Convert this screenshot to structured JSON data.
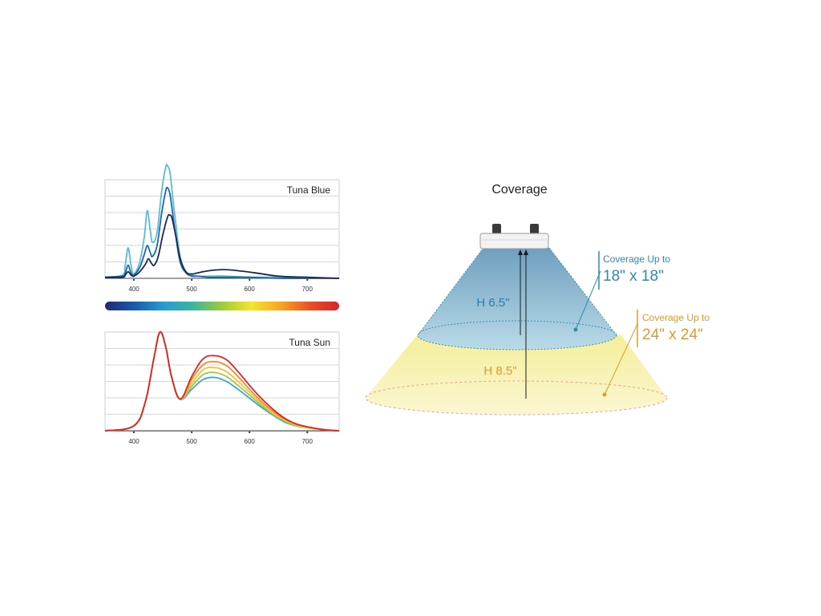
{
  "charts": {
    "blue": {
      "title": "Tuna Blue",
      "xticks": [
        "400",
        "500",
        "600",
        "700"
      ]
    },
    "sun": {
      "title": "Tuna Sun",
      "xticks": [
        "400",
        "500",
        "600",
        "700"
      ]
    }
  },
  "spectrum_bar": {
    "colors": [
      "#1f2a6e",
      "#1a5aa8",
      "#2a9ad0",
      "#3fb3a0",
      "#9ecb3c",
      "#f2e534",
      "#f5a623",
      "#e5512a",
      "#d3262b"
    ]
  },
  "coverage": {
    "title": "Coverage",
    "height_small": "H 6.5\"",
    "height_large": "H 8.5\"",
    "small": {
      "line1": "Coverage Up to",
      "line2": "18\" x 18\"",
      "color": "#2b8bb0"
    },
    "large": {
      "line1": "Coverage Up to",
      "line2": "24\" x 24\"",
      "color": "#e09a2c"
    }
  },
  "chart_data": [
    {
      "type": "line",
      "title": "Tuna Blue",
      "xlabel": "",
      "ylabel": "",
      "xlim": [
        350,
        755
      ],
      "ylim": [
        0,
        1
      ],
      "x_ticks": [
        400,
        500,
        600,
        700
      ],
      "grid": true,
      "series": [
        {
          "color": "#5bbcd6",
          "x": [
            350,
            380,
            385,
            390,
            395,
            400,
            410,
            418,
            423,
            428,
            432,
            440,
            448,
            455,
            458,
            462,
            466,
            472,
            480,
            490,
            500,
            510,
            530,
            560,
            600,
            650,
            700,
            755
          ],
          "y": [
            0.01,
            0.03,
            0.12,
            0.28,
            0.12,
            0.04,
            0.15,
            0.38,
            0.62,
            0.45,
            0.33,
            0.42,
            0.8,
            1.02,
            1.03,
            0.98,
            0.8,
            0.52,
            0.2,
            0.05,
            0.03,
            0.02,
            0.02,
            0.02,
            0.01,
            0.01,
            0.0,
            0.0
          ]
        },
        {
          "color": "#1a6aa8",
          "x": [
            350,
            380,
            385,
            390,
            395,
            400,
            410,
            418,
            423,
            428,
            432,
            440,
            448,
            455,
            458,
            462,
            466,
            472,
            480,
            490,
            500,
            510,
            530,
            560,
            600,
            650,
            700,
            755
          ],
          "y": [
            0.01,
            0.02,
            0.05,
            0.12,
            0.05,
            0.03,
            0.1,
            0.22,
            0.3,
            0.24,
            0.2,
            0.3,
            0.6,
            0.8,
            0.83,
            0.78,
            0.64,
            0.4,
            0.15,
            0.05,
            0.02,
            0.02,
            0.01,
            0.01,
            0.01,
            0.0,
            0.0,
            0.0
          ]
        },
        {
          "color": "#1c2752",
          "x": [
            350,
            380,
            385,
            390,
            395,
            400,
            410,
            420,
            425,
            430,
            435,
            442,
            450,
            458,
            462,
            466,
            472,
            480,
            490,
            500,
            510,
            530,
            555,
            580,
            610,
            650,
            700,
            755
          ],
          "y": [
            0.01,
            0.01,
            0.03,
            0.06,
            0.03,
            0.02,
            0.06,
            0.13,
            0.18,
            0.14,
            0.12,
            0.2,
            0.4,
            0.56,
            0.58,
            0.55,
            0.4,
            0.18,
            0.06,
            0.04,
            0.05,
            0.07,
            0.08,
            0.07,
            0.05,
            0.02,
            0.01,
            0.0
          ]
        }
      ]
    },
    {
      "type": "line",
      "title": "Tuna Sun",
      "xlabel": "",
      "ylabel": "",
      "xlim": [
        350,
        755
      ],
      "ylim": [
        0,
        1
      ],
      "x_ticks": [
        400,
        500,
        600,
        700
      ],
      "grid": true,
      "series": [
        {
          "color": "#3aa3d2",
          "x": [
            350,
            400,
            420,
            435,
            445,
            455,
            465,
            480,
            500,
            520,
            540,
            560,
            580,
            600,
            620,
            640,
            660,
            680,
            700,
            730,
            755
          ],
          "y": [
            0.0,
            0.05,
            0.3,
            0.75,
            1.0,
            0.85,
            0.55,
            0.32,
            0.42,
            0.52,
            0.54,
            0.5,
            0.42,
            0.33,
            0.24,
            0.16,
            0.09,
            0.05,
            0.03,
            0.01,
            0.0
          ]
        },
        {
          "color": "#9ecb3c",
          "x": [
            350,
            400,
            420,
            435,
            445,
            455,
            465,
            480,
            500,
            520,
            540,
            560,
            580,
            600,
            620,
            640,
            660,
            680,
            700,
            730,
            755
          ],
          "y": [
            0.0,
            0.05,
            0.3,
            0.75,
            1.0,
            0.85,
            0.55,
            0.32,
            0.45,
            0.57,
            0.59,
            0.55,
            0.46,
            0.36,
            0.26,
            0.17,
            0.1,
            0.05,
            0.03,
            0.01,
            0.0
          ]
        },
        {
          "color": "#f2c33a",
          "x": [
            350,
            400,
            420,
            435,
            445,
            455,
            465,
            480,
            500,
            520,
            540,
            560,
            580,
            600,
            620,
            640,
            660,
            680,
            700,
            730,
            755
          ],
          "y": [
            0.0,
            0.05,
            0.3,
            0.75,
            1.0,
            0.85,
            0.55,
            0.32,
            0.48,
            0.62,
            0.64,
            0.6,
            0.5,
            0.39,
            0.28,
            0.18,
            0.11,
            0.06,
            0.03,
            0.01,
            0.0
          ]
        },
        {
          "color": "#f08a2a",
          "x": [
            350,
            400,
            420,
            435,
            445,
            455,
            465,
            480,
            500,
            520,
            540,
            560,
            580,
            600,
            620,
            640,
            660,
            680,
            700,
            730,
            755
          ],
          "y": [
            0.0,
            0.05,
            0.3,
            0.75,
            1.0,
            0.85,
            0.55,
            0.32,
            0.52,
            0.67,
            0.7,
            0.66,
            0.55,
            0.42,
            0.3,
            0.2,
            0.12,
            0.07,
            0.04,
            0.01,
            0.0
          ]
        },
        {
          "color": "#d8262b",
          "x": [
            350,
            400,
            420,
            435,
            445,
            455,
            465,
            480,
            500,
            520,
            540,
            560,
            580,
            600,
            620,
            640,
            660,
            680,
            700,
            730,
            755
          ],
          "y": [
            0.0,
            0.05,
            0.3,
            0.75,
            1.0,
            0.85,
            0.55,
            0.32,
            0.55,
            0.73,
            0.76,
            0.72,
            0.6,
            0.46,
            0.33,
            0.22,
            0.13,
            0.07,
            0.04,
            0.01,
            0.0
          ]
        }
      ]
    }
  ]
}
